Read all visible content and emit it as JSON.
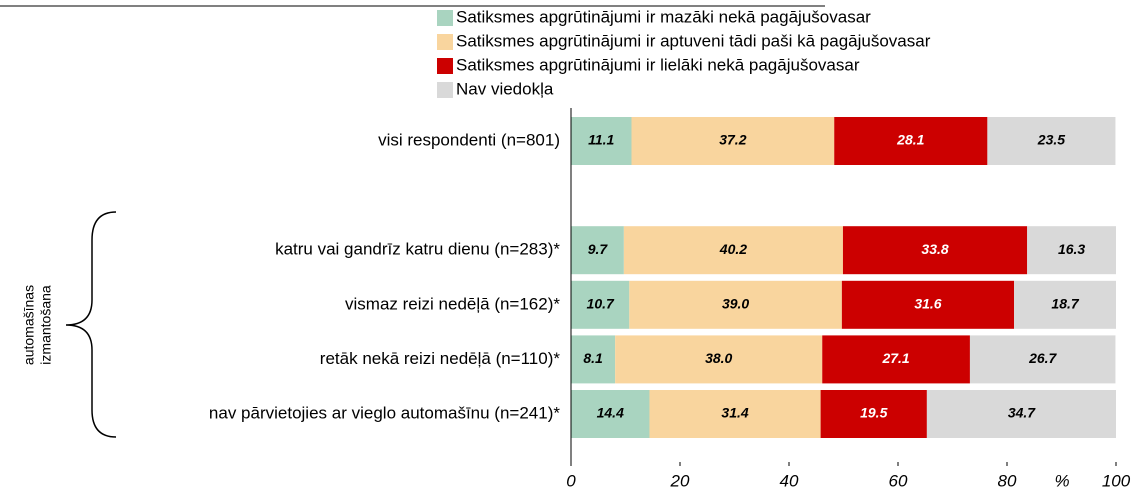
{
  "chart_data": {
    "type": "stacked_barh",
    "categories": [
      "visi respondenti (n=801)",
      null,
      "katru vai gandrīz katru dienu (n=283)*",
      "vismaz reizi nedēļā (n=162)*",
      "retāk nekā reizi nedēļā (n=110)*",
      "nav pārvietojies ar vieglo automašīnu (n=241)*"
    ],
    "series": [
      {
        "name": "Satiksmes apgrūtinājumi ir mazāki nekā pagājušovasar",
        "color": "#a9d4c0",
        "label_color": "#000000",
        "values": [
          11.1,
          null,
          9.7,
          10.7,
          8.1,
          14.4
        ],
        "value_labels": [
          "11.1",
          null,
          "9.7",
          "10.7",
          "8.1",
          "14.4"
        ]
      },
      {
        "name": "Satiksmes apgrūtinājumi ir aptuveni tādi paši kā pagājušovasar",
        "color": "#f9d59e",
        "label_color": "#000000",
        "values": [
          37.2,
          null,
          40.2,
          39.0,
          38.0,
          31.4
        ],
        "value_labels": [
          "37.2",
          null,
          "40.2",
          "39.0",
          "38.0",
          "31.4"
        ]
      },
      {
        "name": "Satiksmes apgrūtinājumi ir lielāki nekā pagājušovasar",
        "color": "#cc0000",
        "label_color": "#ffffff",
        "values": [
          28.1,
          null,
          33.8,
          31.6,
          27.1,
          19.5
        ],
        "value_labels": [
          "28.1",
          null,
          "33.8",
          "31.6",
          "27.1",
          "19.5"
        ]
      },
      {
        "name": "Nav viedokļa",
        "color": "#d9d9d9",
        "label_color": "#000000",
        "values": [
          23.5,
          null,
          16.3,
          18.7,
          26.7,
          34.7
        ],
        "value_labels": [
          "23.5",
          null,
          "16.3",
          "18.7",
          "26.7",
          "34.7"
        ]
      }
    ],
    "xlim": [
      0,
      100
    ],
    "xticks": [
      0,
      20,
      40,
      60,
      80,
      100
    ],
    "x_label": "%",
    "annotation": [
      "automašīnas",
      "izmantošana"
    ]
  }
}
